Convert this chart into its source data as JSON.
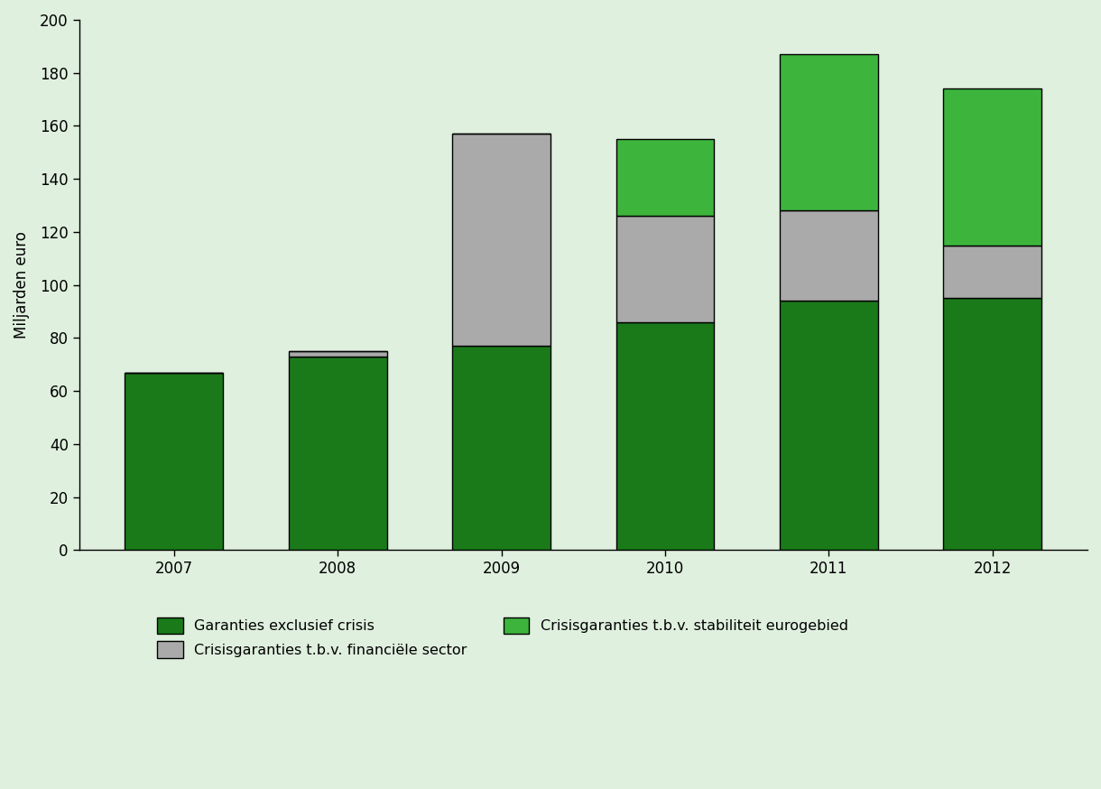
{
  "years": [
    "2007",
    "2008",
    "2009",
    "2010",
    "2011",
    "2012"
  ],
  "garanties_exclusief": [
    67,
    73,
    77,
    86,
    94,
    95
  ],
  "crisisgaranties_financieel": [
    0,
    2,
    80,
    40,
    34,
    20
  ],
  "crisisgaranties_stabiliteit": [
    0,
    0,
    0,
    29,
    59,
    59
  ],
  "color_dark_green": "#1a7a1a",
  "color_gray": "#aaaaaa",
  "color_light_green": "#3db53d",
  "background_color": "#dff0de",
  "ylabel": "Miljarden euro",
  "ylim": [
    0,
    200
  ],
  "yticks": [
    0,
    20,
    40,
    60,
    80,
    100,
    120,
    140,
    160,
    180,
    200
  ],
  "legend_dark_green": "Garanties exclusief crisis",
  "legend_gray": "Crisisgaranties t.b.v. financiële sector",
  "legend_light_green": "Crisisgaranties t.b.v. stabiliteit eurogebied",
  "bar_width": 0.6,
  "tick_fontsize": 12,
  "legend_fontsize": 11.5
}
